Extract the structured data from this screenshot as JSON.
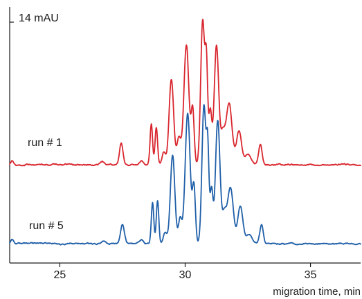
{
  "chart_data": {
    "type": "line",
    "title": "",
    "xlabel": "migration time, min",
    "ylabel": "",
    "xlim": [
      23,
      37
    ],
    "x_ticks": [
      25,
      30,
      35
    ],
    "x_tick_labels": [
      "25",
      "30",
      "35"
    ],
    "scale_bar_label": "14  mAU",
    "grid": false,
    "legend": "none",
    "series": [
      {
        "name": "run # 1",
        "color": "#d9262e",
        "baseline": 0,
        "peaks": [
          {
            "x": 23.1,
            "height": 0.5,
            "width": 0.06
          },
          {
            "x": 26.7,
            "height": 0.4,
            "width": 0.08
          },
          {
            "x": 27.45,
            "height": 2.8,
            "width": 0.07
          },
          {
            "x": 28.25,
            "height": 0.5,
            "width": 0.08
          },
          {
            "x": 28.65,
            "height": 5.3,
            "width": 0.05
          },
          {
            "x": 28.85,
            "height": 4.9,
            "width": 0.05
          },
          {
            "x": 29.15,
            "height": 1.6,
            "width": 0.07
          },
          {
            "x": 29.45,
            "height": 11.2,
            "width": 0.09
          },
          {
            "x": 29.75,
            "height": 3.5,
            "width": 0.08
          },
          {
            "x": 30.05,
            "height": 15.6,
            "width": 0.1
          },
          {
            "x": 30.3,
            "height": 7.0,
            "width": 0.06
          },
          {
            "x": 30.7,
            "height": 18.8,
            "width": 0.08
          },
          {
            "x": 30.85,
            "height": 11.6,
            "width": 0.05
          },
          {
            "x": 31.0,
            "height": 6.9,
            "width": 0.06
          },
          {
            "x": 31.25,
            "height": 15.5,
            "width": 0.09
          },
          {
            "x": 31.5,
            "height": 3.6,
            "width": 0.08
          },
          {
            "x": 31.75,
            "height": 8.0,
            "width": 0.12
          },
          {
            "x": 32.15,
            "height": 4.4,
            "width": 0.1
          },
          {
            "x": 32.5,
            "height": 1.3,
            "width": 0.12
          },
          {
            "x": 33.0,
            "height": 2.7,
            "width": 0.07
          }
        ]
      },
      {
        "name": "run # 5",
        "color": "#1f5fa8",
        "baseline": 0,
        "peaks": [
          {
            "x": 23.1,
            "height": 0.5,
            "width": 0.06
          },
          {
            "x": 26.75,
            "height": 0.4,
            "width": 0.08
          },
          {
            "x": 27.5,
            "height": 2.5,
            "width": 0.08
          },
          {
            "x": 28.25,
            "height": 0.5,
            "width": 0.08
          },
          {
            "x": 28.7,
            "height": 5.3,
            "width": 0.05
          },
          {
            "x": 28.9,
            "height": 5.6,
            "width": 0.05
          },
          {
            "x": 29.2,
            "height": 1.5,
            "width": 0.07
          },
          {
            "x": 29.5,
            "height": 11.5,
            "width": 0.09
          },
          {
            "x": 29.8,
            "height": 3.3,
            "width": 0.07
          },
          {
            "x": 30.1,
            "height": 17.0,
            "width": 0.1
          },
          {
            "x": 30.35,
            "height": 7.2,
            "width": 0.06
          },
          {
            "x": 30.75,
            "height": 18.0,
            "width": 0.08
          },
          {
            "x": 30.9,
            "height": 11.0,
            "width": 0.05
          },
          {
            "x": 31.05,
            "height": 7.0,
            "width": 0.06
          },
          {
            "x": 31.3,
            "height": 16.0,
            "width": 0.09
          },
          {
            "x": 31.55,
            "height": 3.4,
            "width": 0.08
          },
          {
            "x": 31.8,
            "height": 7.3,
            "width": 0.12
          },
          {
            "x": 32.2,
            "height": 4.9,
            "width": 0.1
          },
          {
            "x": 32.55,
            "height": 1.2,
            "width": 0.12
          },
          {
            "x": 33.05,
            "height": 2.5,
            "width": 0.07
          }
        ]
      }
    ]
  }
}
